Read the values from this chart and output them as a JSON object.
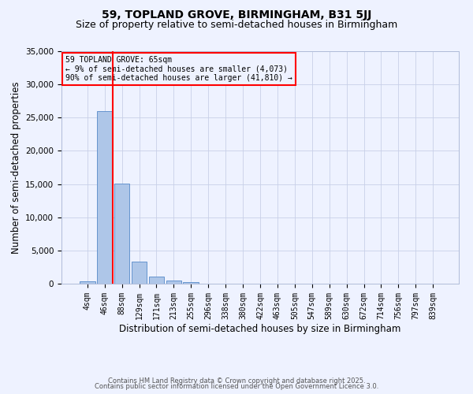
{
  "title": "59, TOPLAND GROVE, BIRMINGHAM, B31 5JJ",
  "subtitle": "Size of property relative to semi-detached houses in Birmingham",
  "xlabel": "Distribution of semi-detached houses by size in Birmingham",
  "ylabel": "Number of semi-detached properties",
  "footer_line1": "Contains HM Land Registry data © Crown copyright and database right 2025.",
  "footer_line2": "Contains public sector information licensed under the Open Government Licence 3.0.",
  "bar_labels": [
    "4sqm",
    "46sqm",
    "88sqm",
    "129sqm",
    "171sqm",
    "213sqm",
    "255sqm",
    "296sqm",
    "338sqm",
    "380sqm",
    "422sqm",
    "463sqm",
    "505sqm",
    "547sqm",
    "589sqm",
    "630sqm",
    "672sqm",
    "714sqm",
    "756sqm",
    "797sqm",
    "839sqm"
  ],
  "bar_values": [
    400,
    26000,
    15100,
    3300,
    1100,
    480,
    200,
    50,
    0,
    0,
    0,
    0,
    0,
    0,
    0,
    0,
    0,
    0,
    0,
    0,
    0
  ],
  "bar_color": "#aec6e8",
  "bar_edge_color": "#5589c8",
  "red_line_x": 1.45,
  "annotation_text": "59 TOPLAND GROVE: 65sqm\n← 9% of semi-detached houses are smaller (4,073)\n90% of semi-detached houses are larger (41,810) →",
  "ylim": [
    0,
    35000
  ],
  "yticks": [
    0,
    5000,
    10000,
    15000,
    20000,
    25000,
    30000,
    35000
  ],
  "background_color": "#eef2ff",
  "grid_color": "#c8d0e8",
  "title_fontsize": 10,
  "subtitle_fontsize": 9,
  "axis_label_fontsize": 8.5,
  "tick_fontsize": 7,
  "footer_fontsize": 6
}
